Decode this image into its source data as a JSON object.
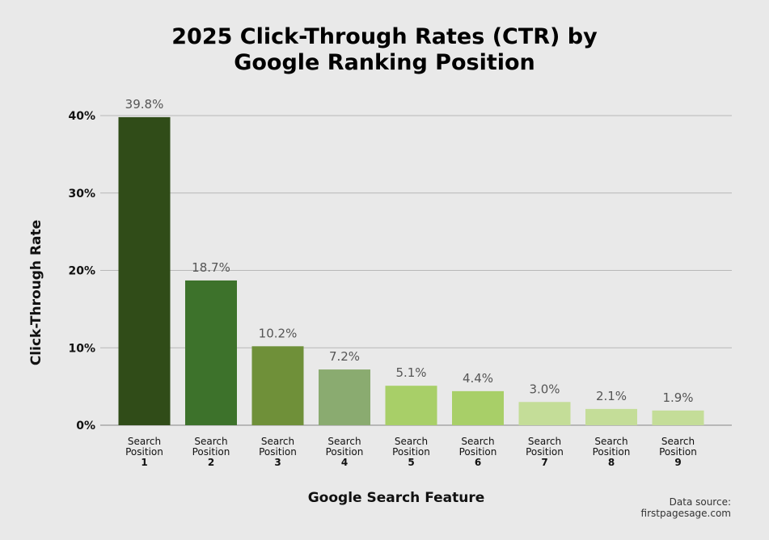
{
  "title_line1": "2025 Click-Through Rates (CTR) by",
  "title_line2": "Google Ranking Position",
  "source_line1": "Data source:",
  "source_line2": "firstpagesage.com",
  "chart_data": {
    "type": "bar",
    "title": "2025 Click-Through Rates (CTR) by Google Ranking Position",
    "xlabel": "Google Search Feature",
    "ylabel": "Click-Through Rate",
    "ylim": [
      0,
      40
    ],
    "yticks": [
      0,
      10,
      20,
      30,
      40
    ],
    "ytick_labels": [
      "0%",
      "10%",
      "20%",
      "30%",
      "40%"
    ],
    "categories": [
      [
        "Search",
        "Position",
        "1"
      ],
      [
        "Search",
        "Position",
        "2"
      ],
      [
        "Search",
        "Position",
        "3"
      ],
      [
        "Search",
        "Position",
        "4"
      ],
      [
        "Search",
        "Position",
        "5"
      ],
      [
        "Search",
        "Position",
        "6"
      ],
      [
        "Search",
        "Position",
        "7"
      ],
      [
        "Search",
        "Position",
        "8"
      ],
      [
        "Search",
        "Position",
        "9"
      ]
    ],
    "values": [
      39.8,
      18.7,
      10.2,
      7.2,
      5.1,
      4.4,
      3.0,
      2.1,
      1.9
    ],
    "value_labels": [
      "39.8%",
      "18.7%",
      "10.2%",
      "7.2%",
      "5.1%",
      "4.4%",
      "3.0%",
      "2.1%",
      "1.9%"
    ],
    "colors": [
      "#304c18",
      "#3d722b",
      "#6f9039",
      "#8aab70",
      "#a8cf68",
      "#a8cf68",
      "#c4dd98",
      "#c4dd98",
      "#c4dd98"
    ],
    "grid": true,
    "legend": "none"
  }
}
